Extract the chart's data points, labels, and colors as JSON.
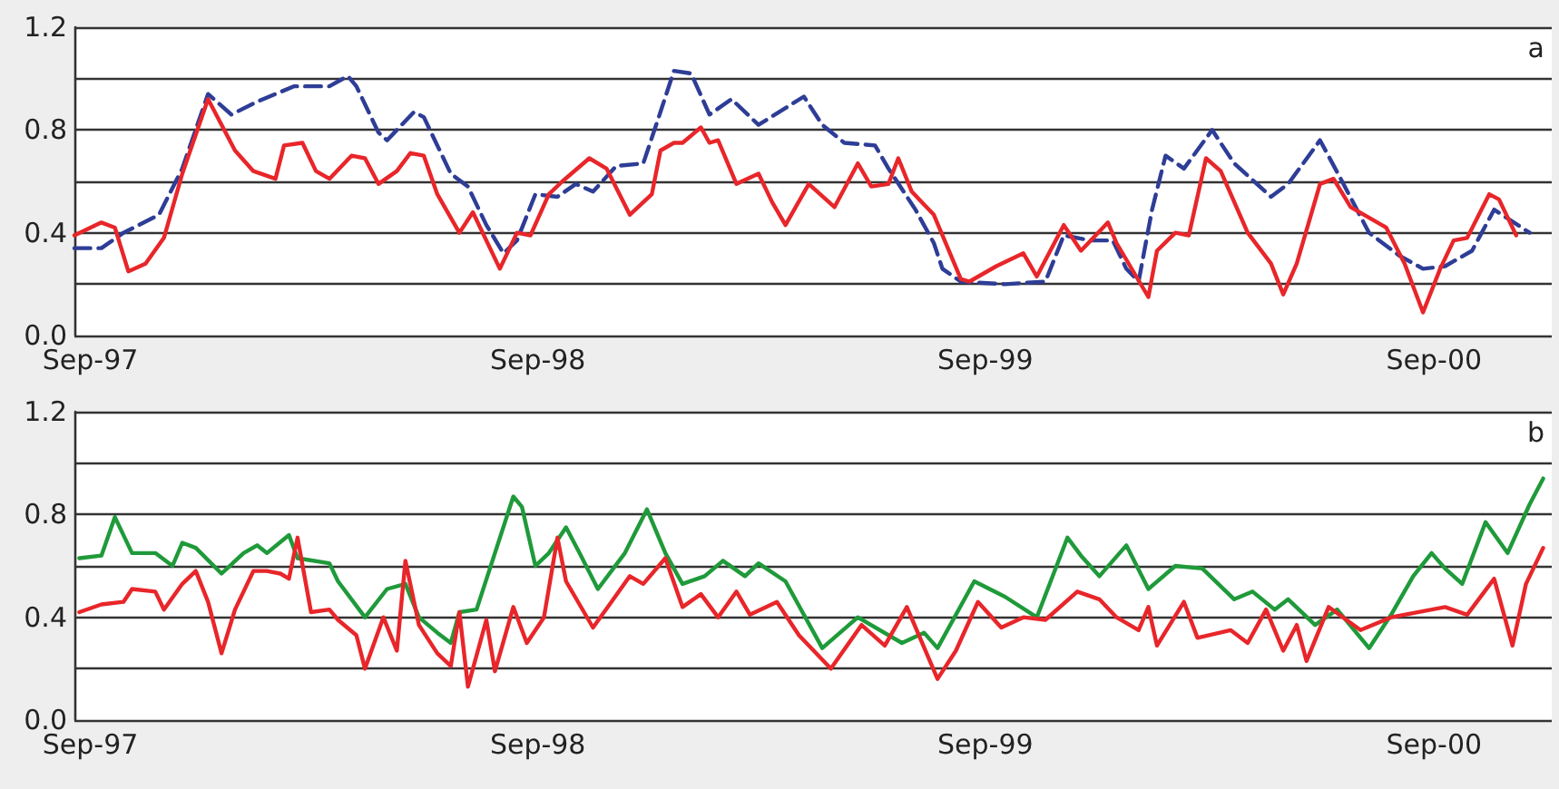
{
  "chart_data": [
    {
      "type": "line",
      "annotations": [
        "a"
      ],
      "xlim": [
        "1997-08-19",
        "2000-12-06"
      ],
      "xticks": [
        {
          "value": "1997-09",
          "label": "Sep-97"
        },
        {
          "value": "1998-09",
          "label": "Sep-98"
        },
        {
          "value": "1999-09",
          "label": "Sep-99"
        },
        {
          "value": "2000-09",
          "label": "Sep-00"
        }
      ],
      "ylim": [
        0,
        1.2
      ],
      "yticks": [
        {
          "value": 0,
          "label": "0.0"
        },
        {
          "value": 0.2,
          "label": null
        },
        {
          "value": 0.4,
          "label": "0.4"
        },
        {
          "value": 0.6,
          "label": null
        },
        {
          "value": 0.8,
          "label": "0.8"
        },
        {
          "value": 1.0,
          "label": null
        },
        {
          "value": 1.2,
          "label": "1.2"
        }
      ],
      "grid": "y",
      "marker": "none",
      "series": [
        {
          "color": "#2e3d96",
          "line_style": "dashed",
          "x": [
            "1997-08-19",
            "1997-09-10",
            "1997-09-28",
            "1997-10-27",
            "1997-11-15",
            "1997-12-06",
            "1997-12-25",
            "1998-01-15",
            "1998-02-14",
            "1998-03-15",
            "1998-03-30",
            "1998-04-06",
            "1998-04-24",
            "1998-05-01",
            "1998-05-23",
            "1998-05-31",
            "1998-06-22",
            "1998-07-06",
            "1998-07-21",
            "1998-08-04",
            "1998-08-15",
            "1998-08-30",
            "1998-09-17",
            "1998-10-02",
            "1998-10-16",
            "1998-11-04",
            "1998-11-26",
            "1998-12-10",
            "1998-12-21",
            "1999-01-04",
            "1999-01-19",
            "1999-02-06",
            "1999-02-28",
            "1999-04-06",
            "1999-04-21",
            "1999-05-09",
            "1999-06-03",
            "1999-06-14",
            "1999-07-06",
            "1999-07-21",
            "1999-07-28",
            "1999-08-12",
            "1999-09-17",
            "1999-10-20",
            "1999-11-04",
            "1999-11-26",
            "1999-12-14",
            "1999-12-25",
            "2000-01-04",
            "2000-01-15",
            "2000-01-26",
            "2000-02-10",
            "2000-03-04",
            "2000-03-22",
            "2000-04-21",
            "2000-05-05",
            "2000-05-31",
            "2000-06-18",
            "2000-07-10",
            "2000-08-04",
            "2000-08-23",
            "2000-09-10",
            "2000-10-02",
            "2000-10-20",
            "2000-11-18"
          ],
          "values": [
            0.34,
            0.34,
            0.4,
            0.47,
            0.65,
            0.94,
            0.86,
            0.91,
            0.97,
            0.97,
            1.01,
            0.97,
            0.79,
            0.76,
            0.87,
            0.85,
            0.63,
            0.58,
            0.43,
            0.32,
            0.37,
            0.55,
            0.54,
            0.59,
            0.56,
            0.66,
            0.67,
            0.87,
            1.03,
            1.02,
            0.86,
            0.92,
            0.82,
            0.93,
            0.82,
            0.75,
            0.74,
            0.65,
            0.49,
            0.36,
            0.26,
            0.21,
            0.2,
            0.21,
            0.39,
            0.37,
            0.37,
            0.26,
            0.21,
            0.49,
            0.7,
            0.65,
            0.8,
            0.67,
            0.54,
            0.59,
            0.76,
            0.6,
            0.4,
            0.31,
            0.26,
            0.27,
            0.33,
            0.49,
            0.4
          ]
        },
        {
          "color": "#e8262a",
          "line_style": "solid",
          "x": [
            "1997-08-19",
            "1997-09-10",
            "1997-09-21",
            "1997-10-02",
            "1997-10-16",
            "1997-10-31",
            "1997-11-15",
            "1997-12-06",
            "1997-12-28",
            "1998-01-12",
            "1998-01-30",
            "1998-02-06",
            "1998-02-21",
            "1998-03-04",
            "1998-03-15",
            "1998-04-02",
            "1998-04-13",
            "1998-04-24",
            "1998-05-09",
            "1998-05-20",
            "1998-05-31",
            "1998-06-11",
            "1998-06-29",
            "1998-07-10",
            "1998-08-01",
            "1998-08-15",
            "1998-08-26",
            "1998-09-10",
            "1998-09-21",
            "1998-10-13",
            "1998-10-27",
            "1998-11-15",
            "1998-12-03",
            "1998-12-10",
            "1998-12-21",
            "1998-12-28",
            "1999-01-12",
            "1999-01-19",
            "1999-01-26",
            "1999-02-10",
            "1999-02-28",
            "1999-03-11",
            "1999-03-22",
            "1999-04-10",
            "1999-05-01",
            "1999-05-20",
            "1999-05-31",
            "1999-06-14",
            "1999-06-22",
            "1999-07-03",
            "1999-07-21",
            "1999-08-12",
            "1999-08-19",
            "1999-09-10",
            "1999-10-02",
            "1999-10-13",
            "1999-11-04",
            "1999-11-18",
            "1999-12-10",
            "1999-12-17",
            "2000-01-12",
            "2000-01-19",
            "2000-02-03",
            "2000-02-14",
            "2000-02-28",
            "2000-03-11",
            "2000-04-02",
            "2000-04-21",
            "2000-05-01",
            "2000-05-12",
            "2000-05-31",
            "2000-06-11",
            "2000-06-25",
            "2000-07-24",
            "2000-08-08",
            "2000-08-23",
            "2000-09-06",
            "2000-09-17",
            "2000-09-28",
            "2000-10-16",
            "2000-10-24",
            "2000-11-07"
          ],
          "values": [
            0.39,
            0.44,
            0.42,
            0.25,
            0.28,
            0.38,
            0.63,
            0.92,
            0.72,
            0.64,
            0.61,
            0.74,
            0.75,
            0.64,
            0.61,
            0.7,
            0.69,
            0.59,
            0.64,
            0.71,
            0.7,
            0.55,
            0.4,
            0.48,
            0.26,
            0.4,
            0.39,
            0.55,
            0.6,
            0.69,
            0.65,
            0.47,
            0.55,
            0.72,
            0.75,
            0.75,
            0.81,
            0.75,
            0.76,
            0.59,
            0.63,
            0.52,
            0.43,
            0.59,
            0.5,
            0.67,
            0.58,
            0.59,
            0.69,
            0.56,
            0.47,
            0.22,
            0.21,
            0.27,
            0.32,
            0.23,
            0.43,
            0.33,
            0.44,
            0.36,
            0.15,
            0.33,
            0.4,
            0.39,
            0.69,
            0.64,
            0.4,
            0.28,
            0.16,
            0.28,
            0.59,
            0.61,
            0.5,
            0.42,
            0.28,
            0.09,
            0.26,
            0.37,
            0.38,
            0.55,
            0.53,
            0.39
          ]
        }
      ]
    },
    {
      "type": "line",
      "annotations": [
        "b"
      ],
      "xlim": [
        "1997-08-19",
        "2000-12-06"
      ],
      "xticks": [
        {
          "value": "1997-09",
          "label": "Sep-97"
        },
        {
          "value": "1998-09",
          "label": "Sep-98"
        },
        {
          "value": "1999-09",
          "label": "Sep-99"
        },
        {
          "value": "2000-09",
          "label": "Sep-00"
        }
      ],
      "ylim": [
        0,
        1.2
      ],
      "yticks": [
        {
          "value": 0,
          "label": "0.0"
        },
        {
          "value": 0.2,
          "label": null
        },
        {
          "value": 0.4,
          "label": "0.4"
        },
        {
          "value": 0.6,
          "label": null
        },
        {
          "value": 0.8,
          "label": "0.8"
        },
        {
          "value": 1.0,
          "label": null
        },
        {
          "value": 1.2,
          "label": "1.2"
        }
      ],
      "grid": "y",
      "marker": "none",
      "series": [
        {
          "color": "#1f9a3a",
          "line_style": "solid",
          "x": [
            "1997-08-23",
            "1997-09-10",
            "1997-09-21",
            "1997-10-05",
            "1997-10-24",
            "1997-11-07",
            "1997-11-15",
            "1997-11-26",
            "1997-12-17",
            "1998-01-04",
            "1998-01-15",
            "1998-01-23",
            "1998-02-10",
            "1998-02-17",
            "1998-03-15",
            "1998-03-22",
            "1998-04-13",
            "1998-05-01",
            "1998-05-16",
            "1998-05-27",
            "1998-06-11",
            "1998-06-22",
            "1998-06-29",
            "1998-07-13",
            "1998-07-28",
            "1998-08-12",
            "1998-08-19",
            "1998-08-30",
            "1998-09-10",
            "1998-09-24",
            "1998-10-05",
            "1998-10-20",
            "1998-11-11",
            "1998-11-29",
            "1998-12-14",
            "1998-12-28",
            "1999-01-15",
            "1999-01-30",
            "1999-02-17",
            "1999-02-28",
            "1999-03-22",
            "1999-04-21",
            "1999-05-20",
            "1999-06-25",
            "1999-07-13",
            "1999-07-24",
            "1999-08-23",
            "1999-09-17",
            "1999-10-13",
            "1999-11-07",
            "1999-11-18",
            "1999-12-03",
            "1999-12-25",
            "2000-01-12",
            "2000-02-03",
            "2000-02-25",
            "2000-03-22",
            "2000-04-06",
            "2000-04-24",
            "2000-05-05",
            "2000-05-27",
            "2000-06-14",
            "2000-07-10",
            "2000-07-28",
            "2000-08-15",
            "2000-08-30",
            "2000-09-10",
            "2000-09-24",
            "2000-10-13",
            "2000-10-31",
            "2000-11-18",
            "2000-11-29"
          ],
          "values": [
            0.63,
            0.64,
            0.79,
            0.65,
            0.65,
            0.6,
            0.69,
            0.67,
            0.57,
            0.65,
            0.68,
            0.65,
            0.72,
            0.63,
            0.61,
            0.54,
            0.4,
            0.51,
            0.53,
            0.4,
            0.34,
            0.3,
            0.42,
            0.43,
            0.65,
            0.87,
            0.83,
            0.6,
            0.65,
            0.75,
            0.65,
            0.51,
            0.65,
            0.82,
            0.65,
            0.53,
            0.56,
            0.62,
            0.56,
            0.61,
            0.54,
            0.28,
            0.4,
            0.3,
            0.34,
            0.28,
            0.54,
            0.48,
            0.4,
            0.71,
            0.64,
            0.56,
            0.68,
            0.51,
            0.6,
            0.59,
            0.47,
            0.5,
            0.43,
            0.47,
            0.37,
            0.43,
            0.28,
            0.41,
            0.56,
            0.65,
            0.59,
            0.53,
            0.77,
            0.65,
            0.84,
            0.94
          ]
        },
        {
          "color": "#e8262a",
          "line_style": "solid",
          "x": [
            "1997-08-23",
            "1997-09-10",
            "1997-09-28",
            "1997-10-05",
            "1997-10-24",
            "1997-10-31",
            "1997-11-15",
            "1997-11-26",
            "1997-12-06",
            "1997-12-17",
            "1997-12-28",
            "1998-01-12",
            "1998-01-23",
            "1998-02-03",
            "1998-02-10",
            "1998-02-17",
            "1998-02-28",
            "1998-03-15",
            "1998-03-22",
            "1998-04-06",
            "1998-04-13",
            "1998-04-28",
            "1998-05-09",
            "1998-05-16",
            "1998-05-27",
            "1998-06-11",
            "1998-06-22",
            "1998-06-29",
            "1998-07-06",
            "1998-07-21",
            "1998-07-28",
            "1998-08-12",
            "1998-08-23",
            "1998-09-06",
            "1998-09-17",
            "1998-09-24",
            "1998-10-16",
            "1998-10-31",
            "1998-11-15",
            "1998-11-26",
            "1998-12-14",
            "1998-12-28",
            "1999-01-12",
            "1999-01-26",
            "1999-02-10",
            "1999-02-21",
            "1999-03-15",
            "1999-04-02",
            "1999-04-28",
            "1999-05-23",
            "1999-06-11",
            "1999-06-29",
            "1999-07-24",
            "1999-08-08",
            "1999-08-26",
            "1999-09-14",
            "1999-10-02",
            "1999-10-20",
            "1999-11-15",
            "1999-12-03",
            "1999-12-17",
            "2000-01-04",
            "2000-01-12",
            "2000-01-19",
            "2000-02-10",
            "2000-02-21",
            "2000-03-19",
            "2000-04-02",
            "2000-04-17",
            "2000-05-01",
            "2000-05-12",
            "2000-05-20",
            "2000-06-07",
            "2000-07-03",
            "2000-07-28",
            "2000-09-10",
            "2000-09-28",
            "2000-10-20",
            "2000-11-04",
            "2000-11-15",
            "2000-11-29"
          ],
          "values": [
            0.42,
            0.45,
            0.46,
            0.51,
            0.5,
            0.43,
            0.53,
            0.58,
            0.46,
            0.26,
            0.43,
            0.58,
            0.58,
            0.57,
            0.55,
            0.71,
            0.42,
            0.43,
            0.39,
            0.33,
            0.2,
            0.4,
            0.27,
            0.62,
            0.37,
            0.26,
            0.21,
            0.42,
            0.13,
            0.39,
            0.19,
            0.44,
            0.3,
            0.4,
            0.71,
            0.54,
            0.36,
            0.46,
            0.56,
            0.53,
            0.63,
            0.44,
            0.49,
            0.4,
            0.5,
            0.41,
            0.46,
            0.33,
            0.2,
            0.37,
            0.29,
            0.44,
            0.16,
            0.27,
            0.46,
            0.36,
            0.4,
            0.39,
            0.5,
            0.47,
            0.4,
            0.35,
            0.44,
            0.29,
            0.46,
            0.32,
            0.35,
            0.3,
            0.43,
            0.27,
            0.37,
            0.23,
            0.44,
            0.35,
            0.4,
            0.44,
            0.41,
            0.55,
            0.29,
            0.53,
            0.67
          ]
        }
      ]
    }
  ]
}
